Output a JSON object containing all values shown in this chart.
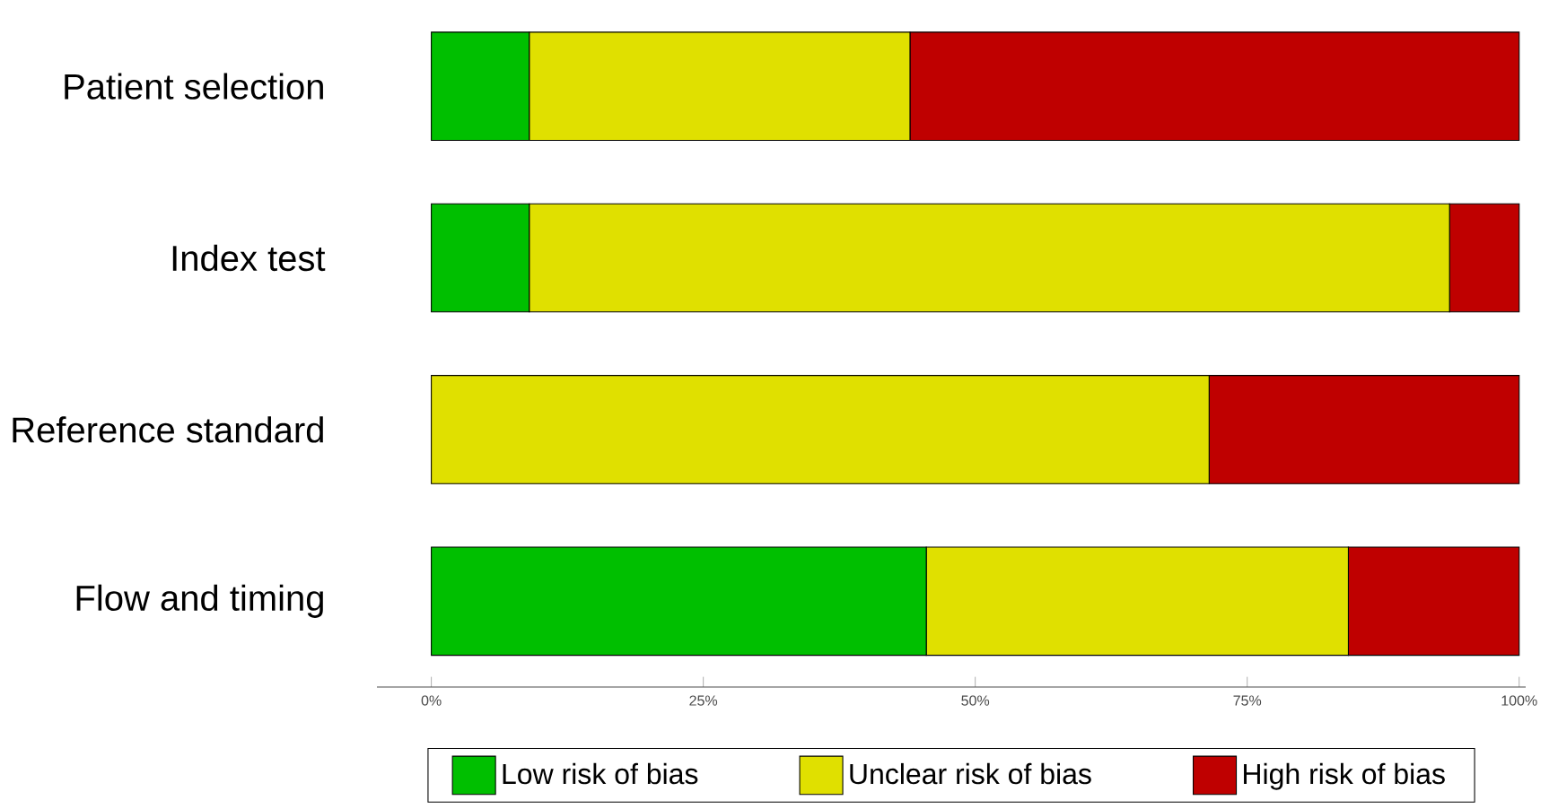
{
  "chart_data": {
    "type": "bar",
    "orientation": "horizontal",
    "stacked": true,
    "categories": [
      "Patient selection",
      "Index test",
      "Reference standard",
      "Flow and timing"
    ],
    "series": [
      {
        "name": "Low risk of bias",
        "color": "#00bf00",
        "values": [
          9,
          9,
          0,
          45.5
        ]
      },
      {
        "name": "Unclear risk of bias",
        "color": "#e0e000",
        "values": [
          35,
          84.6,
          71.5,
          38.8
        ]
      },
      {
        "name": "High risk of bias",
        "color": "#bf0000",
        "values": [
          56,
          6.4,
          28.5,
          15.7
        ]
      }
    ],
    "xlim": [
      -5,
      100.6
    ],
    "xticks": [
      {
        "value": 0,
        "label": "0%"
      },
      {
        "value": 25,
        "label": "25%"
      },
      {
        "value": 50,
        "label": "50%"
      },
      {
        "value": 75,
        "label": "75%"
      },
      {
        "value": 100,
        "label": "100%"
      }
    ],
    "grid": false,
    "legend": "bottom"
  }
}
